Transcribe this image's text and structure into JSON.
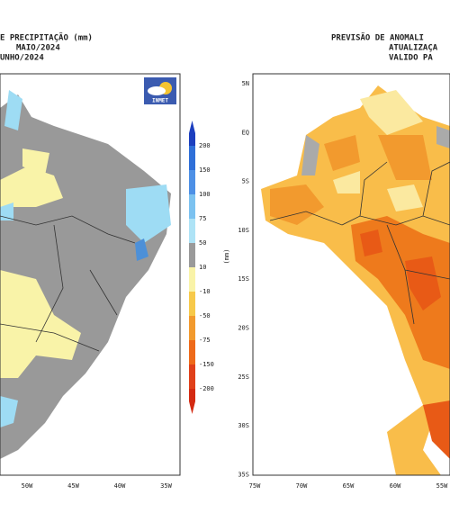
{
  "left_panel": {
    "title_lines": [
      "E PRECIPITAÇÃO (mm)",
      "MAIO/2024",
      "UNHO/2024"
    ],
    "logo": "INMET",
    "lon_labels": [
      "50W",
      "45W",
      "40W",
      "35W"
    ]
  },
  "colorbar": {
    "unit": "(mm)",
    "labels": [
      "200",
      "150",
      "100",
      "75",
      "50",
      "10",
      "-10",
      "-50",
      "-75",
      "-150",
      "-200"
    ]
  },
  "right_panel": {
    "title_lines": [
      "PREVISÃO DE ANOMALI",
      "ATUALIZAÇA",
      "VALIDO PA"
    ],
    "lat_labels": [
      "5N",
      "EQ",
      "5S",
      "10S",
      "15S",
      "20S",
      "25S",
      "30S",
      "35S"
    ],
    "lon_labels": [
      "75W",
      "70W",
      "65W",
      "60W",
      "55W"
    ]
  }
}
